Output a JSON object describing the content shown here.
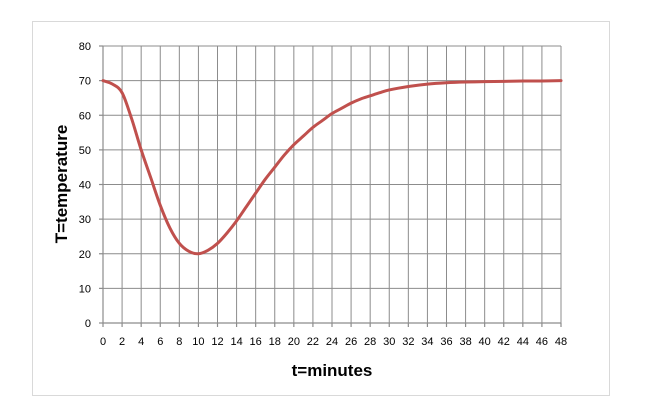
{
  "chart_data": {
    "type": "line",
    "title": "",
    "xlabel": "t=minutes",
    "ylabel": "T=temperature",
    "xlim": [
      0,
      48
    ],
    "ylim": [
      0,
      80
    ],
    "x_ticks": [
      0,
      2,
      4,
      6,
      8,
      10,
      12,
      14,
      16,
      18,
      20,
      22,
      24,
      26,
      28,
      30,
      32,
      34,
      36,
      38,
      40,
      42,
      44,
      46,
      48
    ],
    "y_ticks": [
      0,
      10,
      20,
      30,
      40,
      50,
      60,
      70,
      80
    ],
    "grid": true,
    "legend": "none",
    "series": [
      {
        "color": "#c0504d",
        "x": [
          0,
          1,
          2,
          3,
          4,
          5,
          6,
          7,
          8,
          9,
          10,
          11,
          12,
          13,
          14,
          15,
          16,
          17,
          18,
          19,
          20,
          21,
          22,
          23,
          24,
          25,
          26,
          27,
          28,
          29,
          30,
          32,
          34,
          36,
          38,
          40,
          42,
          44,
          46,
          48
        ],
        "y": [
          70,
          69,
          66.5,
          59,
          50,
          42,
          34,
          27.5,
          23,
          20.7,
          20,
          21,
          23,
          26,
          29.5,
          33.5,
          37.5,
          41.5,
          45,
          48.5,
          51.5,
          54,
          56.5,
          58.5,
          60.5,
          62,
          63.5,
          64.7,
          65.6,
          66.5,
          67.3,
          68.3,
          69,
          69.4,
          69.6,
          69.7,
          69.8,
          69.9,
          69.9,
          70
        ]
      }
    ]
  }
}
